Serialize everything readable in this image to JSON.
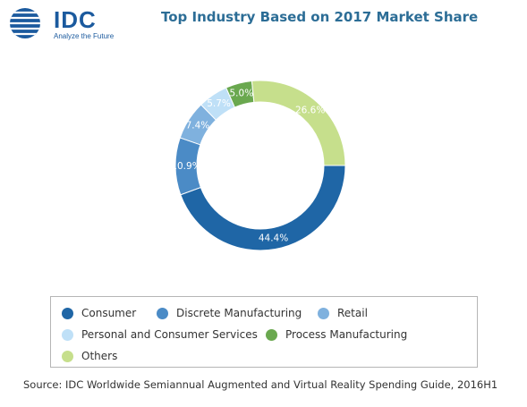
{
  "logo": {
    "text": "IDC",
    "tagline": "Analyze the Future"
  },
  "source": "Source: IDC Worldwide Semiannual Augmented and Virtual Reality Spending Guide, 2016H1",
  "chart_data": {
    "type": "pie",
    "title": "Top Industry Based on 2017 Market Share",
    "categories": [
      "Consumer",
      "Discrete Manufacturing",
      "Retail",
      "Personal and Consumer Services",
      "Process Manufacturing",
      "Others"
    ],
    "values": [
      44.4,
      10.9,
      7.4,
      5.7,
      5.0,
      26.6
    ],
    "labels": [
      "44.4%",
      "10.9%",
      "7.4%",
      "5.7%",
      "5.0%",
      "26.6%"
    ],
    "colors": [
      "#1f66a6",
      "#4b8bc6",
      "#7fb1de",
      "#bfe0f7",
      "#6aa84f",
      "#c6df8c"
    ],
    "legend_position": "bottom"
  }
}
